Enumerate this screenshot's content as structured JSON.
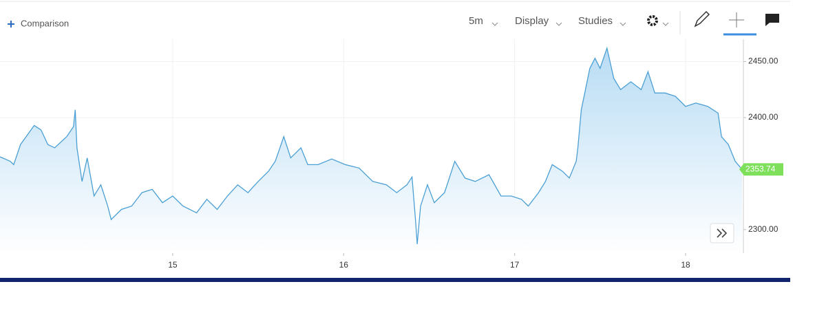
{
  "toolbar": {
    "comparison": "Comparison",
    "interval": "5m",
    "display": "Display",
    "studies": "Studies"
  },
  "chart_data": {
    "type": "area",
    "x": [
      13.99,
      14.05,
      14.07,
      14.11,
      14.19,
      14.23,
      14.27,
      14.31,
      14.38,
      14.42,
      14.43,
      14.44,
      14.47,
      14.5,
      14.54,
      14.58,
      14.62,
      14.64,
      14.7,
      14.76,
      14.82,
      14.88,
      14.94,
      15.0,
      15.06,
      15.14,
      15.2,
      15.26,
      15.32,
      15.38,
      15.44,
      15.5,
      15.56,
      15.6,
      15.65,
      15.69,
      15.75,
      15.79,
      15.85,
      15.93,
      16.01,
      16.09,
      16.17,
      16.25,
      16.31,
      16.37,
      16.4,
      16.42,
      16.43,
      16.45,
      16.49,
      16.53,
      16.59,
      16.65,
      16.71,
      16.77,
      16.85,
      16.92,
      16.98,
      17.04,
      17.08,
      17.14,
      17.18,
      17.22,
      17.28,
      17.32,
      17.36,
      17.37,
      17.39,
      17.44,
      17.47,
      17.5,
      17.54,
      17.58,
      17.62,
      17.68,
      17.74,
      17.78,
      17.82,
      17.88,
      17.94,
      18.0,
      18.06,
      18.13,
      18.19,
      18.21,
      18.25,
      18.29,
      18.33
    ],
    "values": [
      2365,
      2361,
      2358,
      2376,
      2393,
      2389,
      2376,
      2373,
      2383,
      2392,
      2407,
      2373,
      2343,
      2364,
      2330,
      2340,
      2321,
      2309,
      2318,
      2321,
      2333,
      2336,
      2324,
      2330,
      2321,
      2315,
      2327,
      2318,
      2330,
      2340,
      2333,
      2343,
      2352,
      2361,
      2383,
      2364,
      2373,
      2358,
      2358,
      2363,
      2358,
      2355,
      2343,
      2340,
      2333,
      2340,
      2347,
      2309,
      2287,
      2321,
      2340,
      2324,
      2333,
      2361,
      2346,
      2343,
      2349,
      2330,
      2330,
      2327,
      2321,
      2333,
      2343,
      2358,
      2352,
      2346,
      2361,
      2373,
      2407,
      2444,
      2453,
      2444,
      2462,
      2435,
      2425,
      2432,
      2425,
      2441,
      2422,
      2422,
      2419,
      2410,
      2413,
      2410,
      2404,
      2383,
      2376,
      2361,
      2353.74
    ],
    "color": "#4a9fd4",
    "xlim": [
      13.99,
      18.33
    ],
    "xticks": [
      15,
      16,
      17,
      18
    ],
    "ylim": [
      2279,
      2470
    ],
    "yticks": [
      {
        "value": 2300,
        "label": "2300.00"
      },
      {
        "value": 2400,
        "label": "2400.00"
      },
      {
        "value": 2450,
        "label": "2450.00"
      }
    ],
    "current_price": {
      "value": 2353.74,
      "label": "2353.74"
    },
    "grid": true
  }
}
